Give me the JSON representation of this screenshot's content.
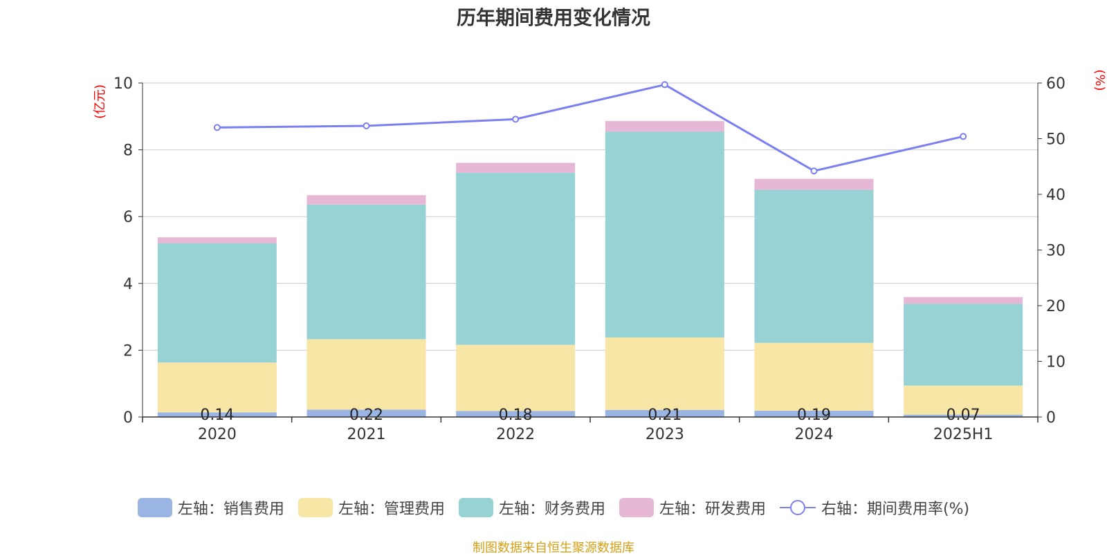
{
  "chart_data": {
    "type": "bar",
    "title": "历年期间费用变化情况",
    "categories": [
      "2020",
      "2021",
      "2022",
      "2023",
      "2024",
      "2025H1"
    ],
    "left_axis": {
      "unit_label": "(亿元)",
      "ylim": [
        0,
        10
      ],
      "ticks": [
        "0",
        "2",
        "4",
        "6",
        "8",
        "10"
      ]
    },
    "right_axis": {
      "unit_label": "(%)",
      "ylim": [
        0,
        60
      ],
      "ticks": [
        "0",
        "10",
        "20",
        "30",
        "40",
        "50",
        "60"
      ]
    },
    "stacked": true,
    "series": [
      {
        "name": "左轴：销售费用",
        "axis": "left",
        "type": "bar",
        "color": "#9ab5e3",
        "values": [
          0.14,
          0.22,
          0.18,
          0.21,
          0.19,
          0.07
        ],
        "labels": [
          "0.14",
          "0.22",
          "0.18",
          "0.21",
          "0.19",
          "0.07"
        ]
      },
      {
        "name": "左轴：管理费用",
        "axis": "left",
        "type": "bar",
        "color": "#f7e6a6",
        "values": [
          1.49,
          2.11,
          1.98,
          2.17,
          2.03,
          0.87
        ]
      },
      {
        "name": "左轴：财务费用",
        "axis": "left",
        "type": "bar",
        "color": "#97d3d4",
        "values": [
          3.57,
          4.03,
          5.15,
          6.16,
          4.58,
          2.45
        ]
      },
      {
        "name": "左轴：研发费用",
        "axis": "left",
        "type": "bar",
        "color": "#e6b8d6",
        "values": [
          0.18,
          0.28,
          0.3,
          0.32,
          0.33,
          0.2
        ]
      },
      {
        "name": "右轴：期间费用率(%)",
        "axis": "right",
        "type": "line",
        "color": "#7b7ff0",
        "values": [
          52.0,
          52.3,
          53.5,
          59.7,
          44.2,
          50.4
        ]
      }
    ],
    "grid": true,
    "legend_position": "bottom"
  },
  "source_note": "制图数据来自恒生聚源数据库",
  "colors": {
    "title": "#333333",
    "axis_unit": "#ff0000",
    "source": "#d4a017"
  }
}
